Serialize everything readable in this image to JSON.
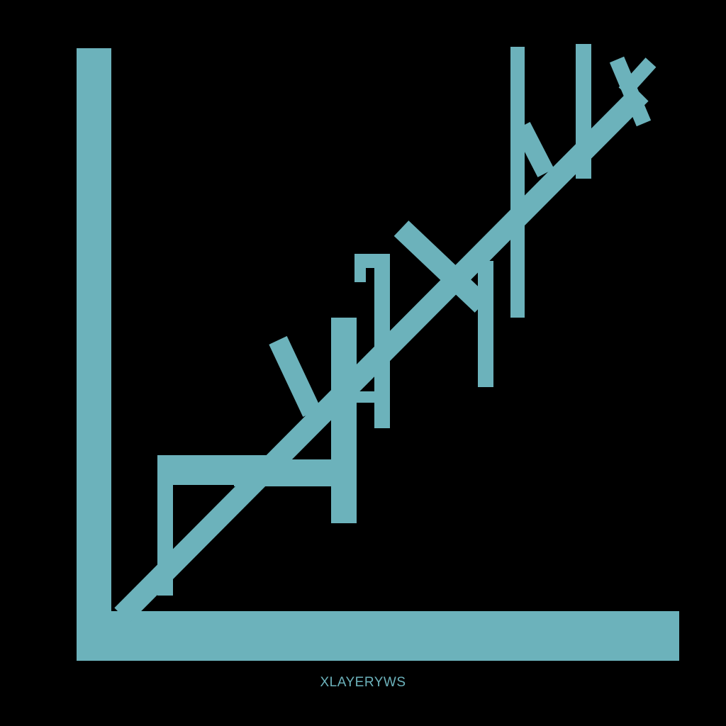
{
  "colors": {
    "background": "#000000",
    "accent": "#6cb2bb"
  },
  "caption": "XLAYERYWS"
}
